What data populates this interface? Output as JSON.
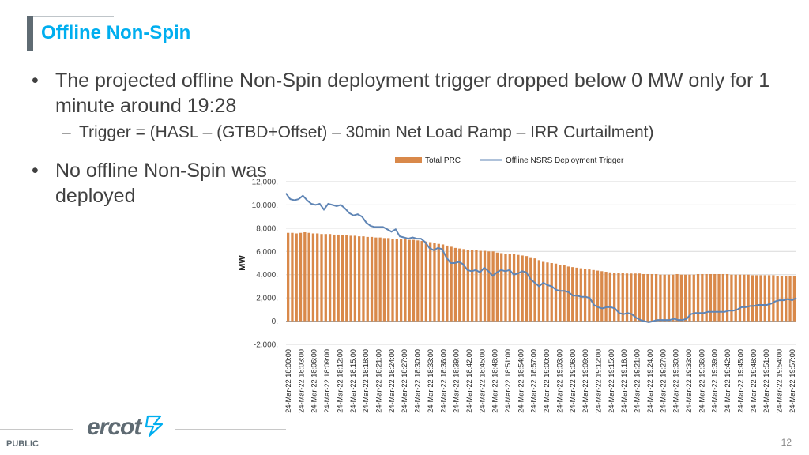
{
  "slide": {
    "title": "Offline Non-Spin",
    "bullets": [
      "The projected offline Non-Spin deployment trigger dropped below 0 MW only for 1 minute around 19:28",
      "No offline Non-Spin was deployed"
    ],
    "sub_bullet": "Trigger =  (HASL – (GTBD+Offset) – 30min Net Load Ramp – IRR Curtailment)",
    "bullet_char": "•",
    "dash_char": "–",
    "footer_label": "PUBLIC",
    "page_number": "12",
    "logo_text": "ercot",
    "logo_icon": "ercot-bolt-icon"
  },
  "colors": {
    "title": "#00aeef",
    "bar": "#d9894a",
    "line": "#5f85b5",
    "text": "#404040"
  },
  "chart_data": {
    "type": "bar",
    "ylabel": "MW",
    "ylim": [
      -2000,
      12000
    ],
    "yticks": [
      -2000,
      0,
      2000,
      4000,
      6000,
      8000,
      10000,
      12000
    ],
    "ytick_labels": [
      "-2,000.",
      "0.",
      "2,000.",
      "4,000.",
      "6,000.",
      "8,000.",
      "10,000.",
      "12,000."
    ],
    "grid": true,
    "legend_position": "top",
    "x_tick_labels": [
      "24-Mar-22 18:00:00",
      "24-Mar-22 18:03:00",
      "24-Mar-22 18:06:00",
      "24-Mar-22 18:09:00",
      "24-Mar-22 18:12:00",
      "24-Mar-22 18:15:00",
      "24-Mar-22 18:18:00",
      "24-Mar-22 18:21:00",
      "24-Mar-22 18:24:00",
      "24-Mar-22 18:27:00",
      "24-Mar-22 18:30:00",
      "24-Mar-22 18:33:00",
      "24-Mar-22 18:36:00",
      "24-Mar-22 18:39:00",
      "24-Mar-22 18:42:00",
      "24-Mar-22 18:45:00",
      "24-Mar-22 18:48:00",
      "24-Mar-22 18:51:00",
      "24-Mar-22 18:54:00",
      "24-Mar-22 18:57:00",
      "24-Mar-22 19:00:00",
      "24-Mar-22 19:03:00",
      "24-Mar-22 19:06:00",
      "24-Mar-22 19:09:00",
      "24-Mar-22 19:12:00",
      "24-Mar-22 19:15:00",
      "24-Mar-22 19:18:00",
      "24-Mar-22 19:21:00",
      "24-Mar-22 19:24:00",
      "24-Mar-22 19:27:00",
      "24-Mar-22 19:30:00",
      "24-Mar-22 19:33:00",
      "24-Mar-22 19:36:00",
      "24-Mar-22 19:39:00",
      "24-Mar-22 19:42:00",
      "24-Mar-22 19:45:00",
      "24-Mar-22 19:48:00",
      "24-Mar-22 19:51:00",
      "24-Mar-22 19:54:00",
      "24-Mar-22 19:57:00"
    ],
    "series": [
      {
        "name": "Total PRC",
        "type": "bar",
        "values": [
          7600,
          7600,
          7550,
          7600,
          7650,
          7600,
          7550,
          7550,
          7500,
          7500,
          7500,
          7450,
          7450,
          7400,
          7400,
          7350,
          7350,
          7300,
          7300,
          7250,
          7250,
          7200,
          7200,
          7150,
          7150,
          7100,
          7100,
          7050,
          7050,
          7000,
          7000,
          6950,
          6900,
          6850,
          6800,
          6700,
          6650,
          6600,
          6500,
          6400,
          6300,
          6250,
          6200,
          6150,
          6100,
          6100,
          6050,
          6050,
          6000,
          6000,
          5900,
          5850,
          5800,
          5800,
          5750,
          5700,
          5650,
          5600,
          5500,
          5400,
          5250,
          5100,
          5050,
          5000,
          4950,
          4850,
          4800,
          4700,
          4650,
          4600,
          4550,
          4500,
          4450,
          4400,
          4350,
          4300,
          4250,
          4200,
          4150,
          4150,
          4150,
          4100,
          4100,
          4100,
          4100,
          4050,
          4050,
          4050,
          4050,
          4000,
          4000,
          4000,
          4000,
          4050,
          4000,
          4000,
          4000,
          4000,
          4050,
          4050,
          4050,
          4050,
          4050,
          4050,
          4050,
          4050,
          4000,
          4000,
          4000,
          4000,
          4000,
          3950,
          3950,
          3950,
          3950,
          3950,
          3950,
          3900,
          3900,
          3900,
          3900,
          3850
        ]
      },
      {
        "name": "Offline NSRS Deployment Trigger",
        "type": "line",
        "values": [
          11000,
          10500,
          10400,
          10500,
          10800,
          10400,
          10100,
          10000,
          10100,
          9600,
          10100,
          10000,
          9900,
          10000,
          9700,
          9300,
          9100,
          9200,
          9000,
          8500,
          8200,
          8100,
          8100,
          8100,
          7900,
          7700,
          7900,
          7300,
          7200,
          7100,
          7200,
          7100,
          7100,
          6800,
          6300,
          6100,
          6300,
          6200,
          5500,
          5000,
          5000,
          5100,
          4900,
          4400,
          4300,
          4400,
          4200,
          4600,
          4300,
          3900,
          4200,
          4400,
          4300,
          4400,
          4000,
          4100,
          4300,
          4200,
          3600,
          3300,
          3000,
          3300,
          3100,
          3000,
          2700,
          2600,
          2600,
          2500,
          2200,
          2200,
          2100,
          2100,
          2000,
          1400,
          1200,
          1100,
          1200,
          1200,
          1100,
          700,
          600,
          700,
          600,
          300,
          100,
          0,
          -100,
          0,
          100,
          100,
          100,
          100,
          200,
          100,
          100,
          200,
          600,
          700,
          700,
          700,
          800,
          800,
          800,
          800,
          800,
          900,
          900,
          1000,
          1200,
          1200,
          1300,
          1300,
          1400,
          1400,
          1400,
          1500,
          1700,
          1800,
          1800,
          1900,
          1800,
          2000
        ]
      }
    ]
  }
}
